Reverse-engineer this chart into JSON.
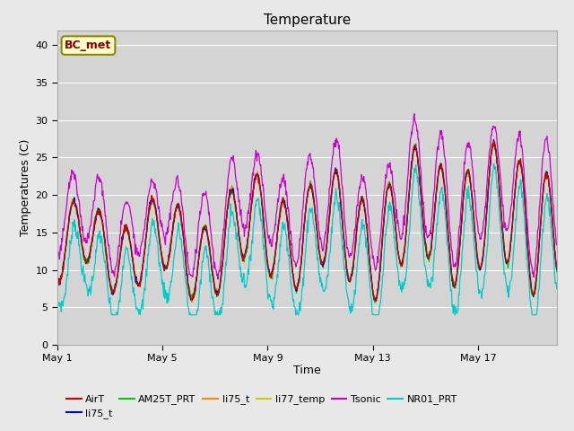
{
  "title": "Temperature",
  "xlabel": "Time",
  "ylabel": "Temperatures (C)",
  "ylim": [
    0,
    42
  ],
  "yticks": [
    0,
    5,
    10,
    15,
    20,
    25,
    30,
    35,
    40
  ],
  "n_days": 19,
  "xtick_days": [
    0,
    4,
    8,
    12,
    16
  ],
  "xtick_labels": [
    "May 1",
    "May 5",
    "May 9",
    "May 13",
    "May 17"
  ],
  "fig_bg": "#e8e8e8",
  "ax_bg": "#d4d4d4",
  "grid_color": "#ffffff",
  "annotation_text": "BC_met",
  "annotation_facecolor": "#ffffcc",
  "annotation_edgecolor": "#888800",
  "annotation_textcolor": "#880000",
  "colors": {
    "AirT": "#cc0000",
    "li75_blue": "#0000cc",
    "AM25T_PRT": "#00cc00",
    "li75_ora": "#ff8800",
    "li77_temp": "#cccc00",
    "Tsonic": "#cc00cc",
    "NR01_PRT": "#00cccc"
  },
  "legend_names": [
    "AirT",
    "li75_t",
    "AM25T_PRT",
    "li75_t",
    "li77_temp",
    "Tsonic",
    "NR01_PRT"
  ],
  "legend_colors": [
    "#cc0000",
    "#0000cc",
    "#00cc00",
    "#ff8800",
    "#cccc00",
    "#cc00cc",
    "#00cccc"
  ]
}
